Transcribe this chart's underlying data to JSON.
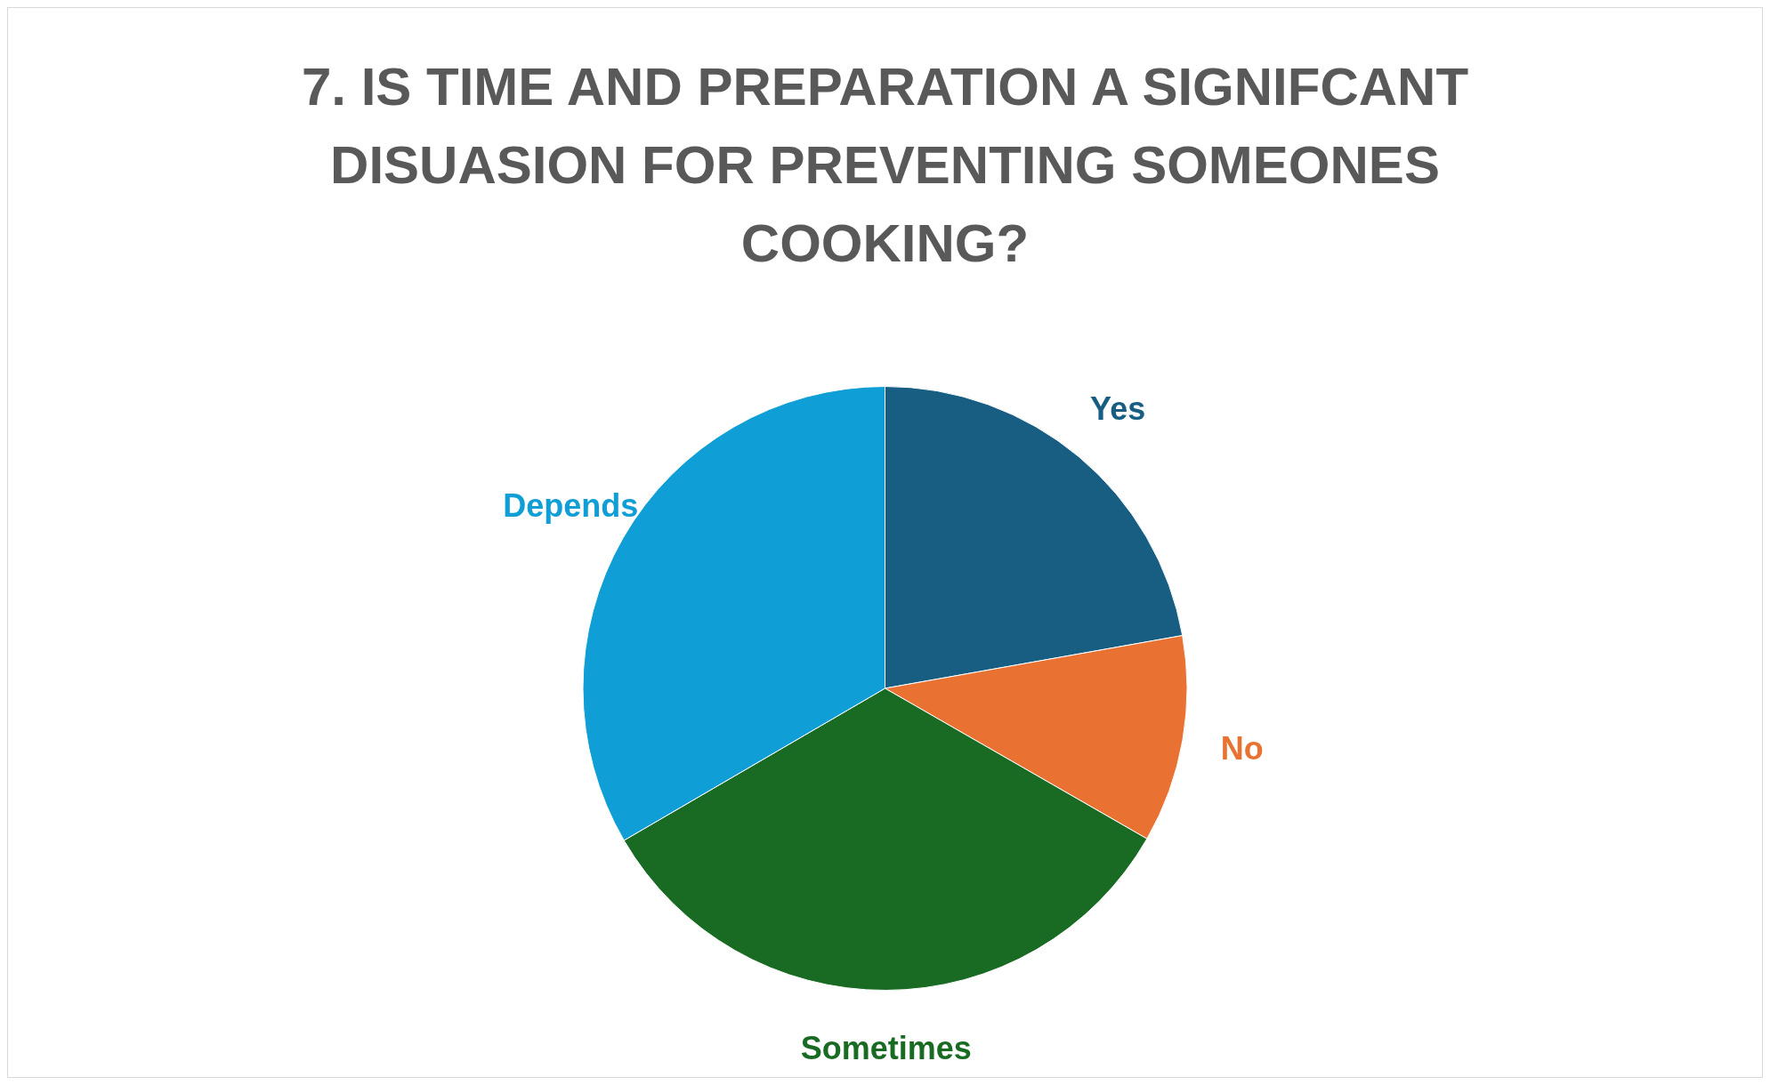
{
  "chart_data": {
    "type": "pie",
    "title": "7. IS TIME AND PREPARATION A SIGNIFCANT DISUASION FOR PREVENTING SOMEONES COOKING?",
    "categories": [
      "Yes",
      "No",
      "Sometimes",
      "Depends"
    ],
    "values": [
      22.2,
      11.1,
      33.3,
      33.4
    ],
    "colors": [
      "#175e82",
      "#e97132",
      "#196b24",
      "#0f9ed5"
    ]
  }
}
